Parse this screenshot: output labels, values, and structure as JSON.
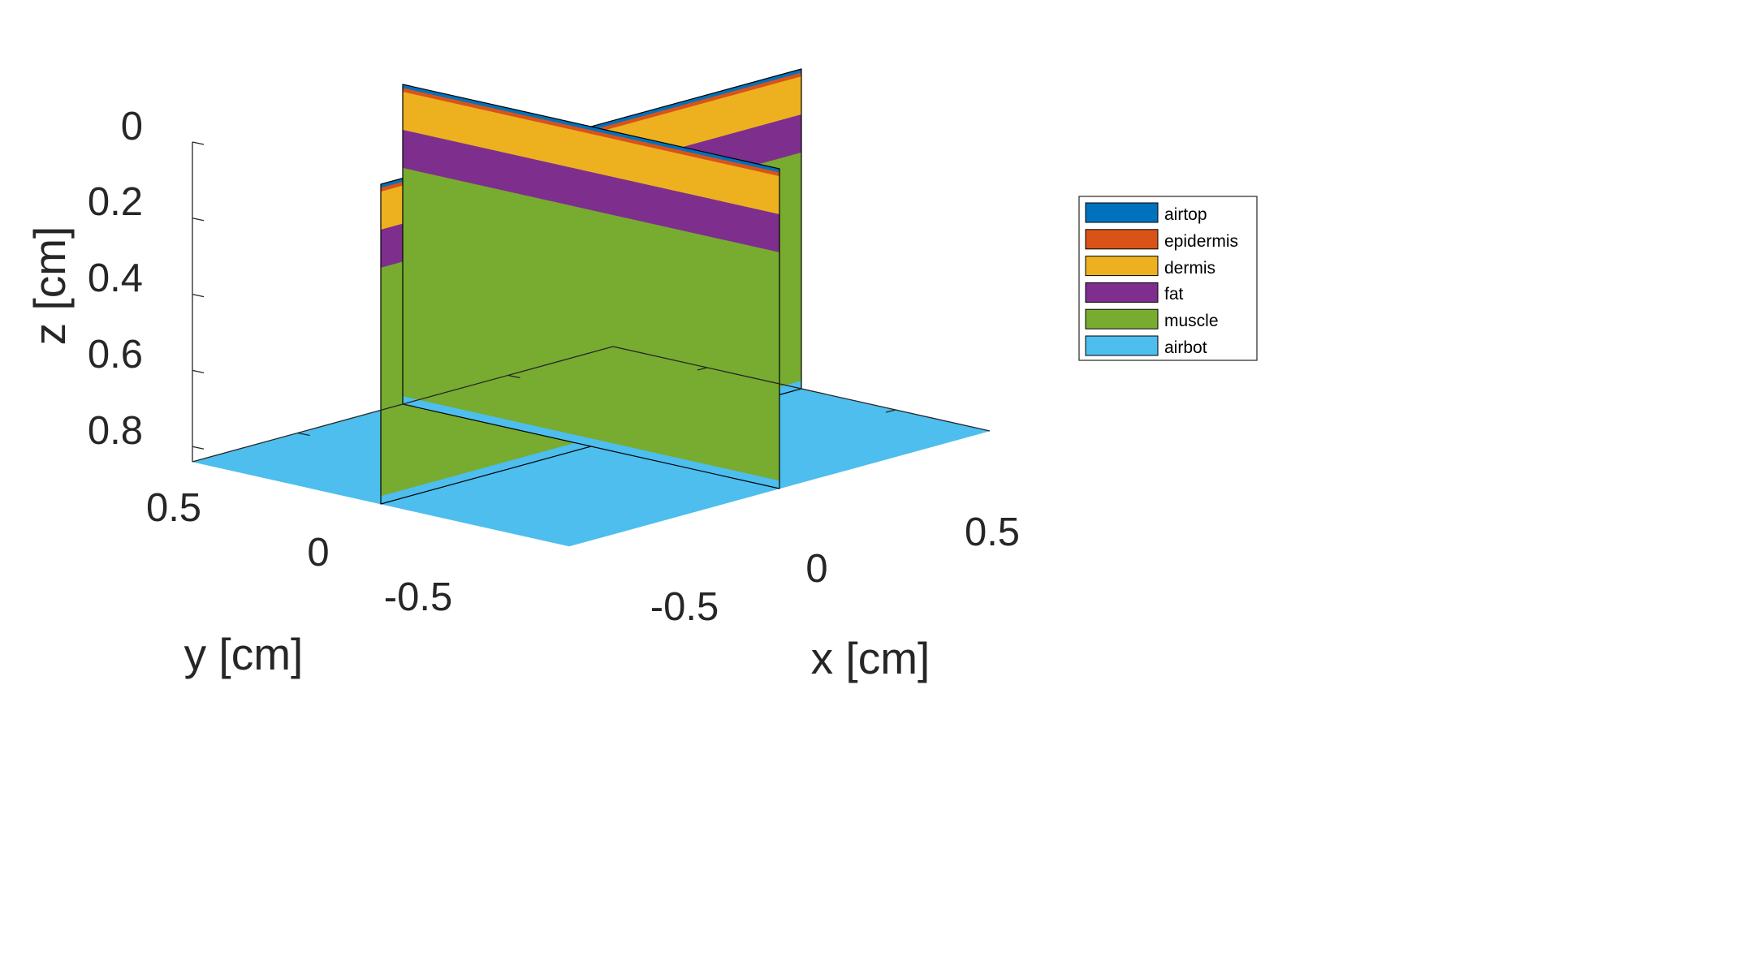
{
  "chart_data": {
    "type": "3d-slice",
    "title": "",
    "xlabel": "x [cm]",
    "ylabel": "y [cm]",
    "zlabel": "z [cm]",
    "xlim": [
      -1,
      1
    ],
    "ylim": [
      -1,
      1
    ],
    "zlim": [
      0,
      0.84
    ],
    "z_direction": "reverse",
    "x_ticks": [
      -0.5,
      0,
      0.5
    ],
    "y_ticks": [
      -0.5,
      0,
      0.5
    ],
    "z_ticks": [
      0,
      0.2,
      0.4,
      0.6,
      0.8
    ],
    "x_tick_labels": [
      "-0.5",
      "0",
      "0.5"
    ],
    "y_tick_labels": [
      "-0.5",
      "0",
      "0.5"
    ],
    "z_tick_labels": [
      "0",
      "0.2",
      "0.4",
      "0.6",
      "0.8"
    ],
    "slices": [
      "x = 0",
      "y = 0",
      "z = 0.84"
    ],
    "layers": [
      {
        "name": "airtop",
        "color": "#0072BD",
        "z_top": 0,
        "z_bottom": 0.01
      },
      {
        "name": "epidermis",
        "color": "#D95319",
        "z_top": 0.01,
        "z_bottom": 0.02
      },
      {
        "name": "dermis",
        "color": "#EDB120",
        "z_top": 0.02,
        "z_bottom": 0.12
      },
      {
        "name": "fat",
        "color": "#7E2F8E",
        "z_top": 0.12,
        "z_bottom": 0.22
      },
      {
        "name": "muscle",
        "color": "#77AC30",
        "z_top": 0.22,
        "z_bottom": 0.82
      },
      {
        "name": "airbot",
        "color": "#4DBEEE",
        "z_top": 0.82,
        "z_bottom": 0.84
      }
    ],
    "legend_position": "right"
  }
}
